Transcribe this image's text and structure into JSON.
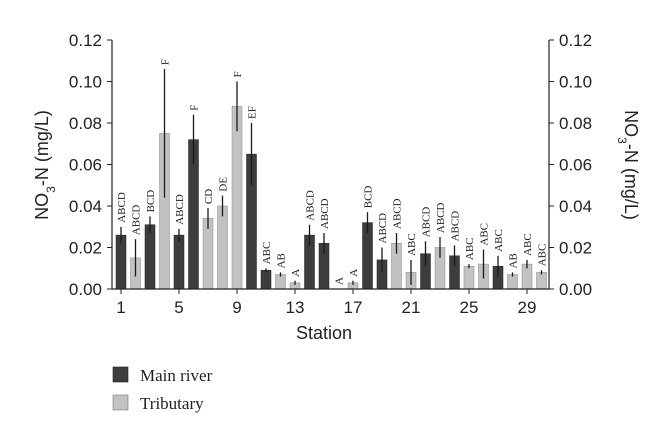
{
  "chart_data": {
    "type": "bar",
    "xlabel": "Station",
    "ylabel": "NO3-N (mg/L)",
    "ylabel_parts": {
      "pre": "NO",
      "sub": "3",
      "post": "-N (mg/L)"
    },
    "ylim": [
      0,
      0.12
    ],
    "yticks": [
      "0.00",
      "0.02",
      "0.04",
      "0.06",
      "0.08",
      "0.10",
      "0.12"
    ],
    "xtick_labels": [
      "1",
      "5",
      "9",
      "13",
      "17",
      "21",
      "25",
      "29"
    ],
    "xtick_stations": [
      1,
      5,
      9,
      13,
      17,
      21,
      25,
      29
    ],
    "grid": false,
    "legend_position": "bottom-left",
    "series": [
      {
        "name": "Main river",
        "color": "#3d3d3d"
      },
      {
        "name": "Tributary",
        "color": "#c2c2c2"
      }
    ],
    "bars": [
      {
        "station": 1,
        "series": "Main river",
        "value": 0.026,
        "error": 0.004,
        "label": "ABCD"
      },
      {
        "station": 2,
        "series": "Tributary",
        "value": 0.015,
        "error": 0.009,
        "label": "ABCD"
      },
      {
        "station": 3,
        "series": "Main river",
        "value": 0.031,
        "error": 0.004,
        "label": "BCD"
      },
      {
        "station": 4,
        "series": "Tributary",
        "value": 0.075,
        "error": 0.031,
        "label": "F"
      },
      {
        "station": 5,
        "series": "Main river",
        "value": 0.026,
        "error": 0.003,
        "label": "ABCD"
      },
      {
        "station": 6,
        "series": "Main river",
        "value": 0.072,
        "error": 0.012,
        "label": "F"
      },
      {
        "station": 7,
        "series": "Tributary",
        "value": 0.034,
        "error": 0.005,
        "label": "CD"
      },
      {
        "station": 8,
        "series": "Tributary",
        "value": 0.04,
        "error": 0.005,
        "label": "DE"
      },
      {
        "station": 9,
        "series": "Tributary",
        "value": 0.088,
        "error": 0.012,
        "label": "F"
      },
      {
        "station": 10,
        "series": "Main river",
        "value": 0.065,
        "error": 0.015,
        "label": "EF"
      },
      {
        "station": 11,
        "series": "Main river",
        "value": 0.009,
        "error": 0.001,
        "label": "ABC"
      },
      {
        "station": 12,
        "series": "Tributary",
        "value": 0.007,
        "error": 0.001,
        "label": "AB"
      },
      {
        "station": 13,
        "series": "Tributary",
        "value": 0.003,
        "error": 0.001,
        "label": "A"
      },
      {
        "station": 14,
        "series": "Main river",
        "value": 0.026,
        "error": 0.005,
        "label": "ABCD"
      },
      {
        "station": 15,
        "series": "Main river",
        "value": 0.022,
        "error": 0.005,
        "label": "ABCD"
      },
      {
        "station": 16,
        "series": "Main river",
        "value": 0.0,
        "error": 0.0,
        "label": "A"
      },
      {
        "station": 17,
        "series": "Tributary",
        "value": 0.003,
        "error": 0.001,
        "label": "A"
      },
      {
        "station": 18,
        "series": "Main river",
        "value": 0.032,
        "error": 0.005,
        "label": "BCD"
      },
      {
        "station": 19,
        "series": "Main river",
        "value": 0.014,
        "error": 0.006,
        "label": "ABCD"
      },
      {
        "station": 20,
        "series": "Tributary",
        "value": 0.022,
        "error": 0.005,
        "label": "ABCD"
      },
      {
        "station": 21,
        "series": "Tributary",
        "value": 0.008,
        "error": 0.006,
        "label": "ABC"
      },
      {
        "station": 22,
        "series": "Main river",
        "value": 0.017,
        "error": 0.006,
        "label": "ABCD"
      },
      {
        "station": 23,
        "series": "Tributary",
        "value": 0.02,
        "error": 0.005,
        "label": "ABCD"
      },
      {
        "station": 24,
        "series": "Main river",
        "value": 0.016,
        "error": 0.005,
        "label": "ABCD"
      },
      {
        "station": 25,
        "series": "Tributary",
        "value": 0.011,
        "error": 0.001,
        "label": "ABC"
      },
      {
        "station": 26,
        "series": "Tributary",
        "value": 0.012,
        "error": 0.007,
        "label": "ABC"
      },
      {
        "station": 27,
        "series": "Main river",
        "value": 0.011,
        "error": 0.005,
        "label": "ABC"
      },
      {
        "station": 28,
        "series": "Tributary",
        "value": 0.007,
        "error": 0.001,
        "label": "AB"
      },
      {
        "station": 29,
        "series": "Tributary",
        "value": 0.012,
        "error": 0.002,
        "label": "ABC"
      },
      {
        "station": 30,
        "series": "Tributary",
        "value": 0.008,
        "error": 0.001,
        "label": "ABC"
      }
    ]
  }
}
